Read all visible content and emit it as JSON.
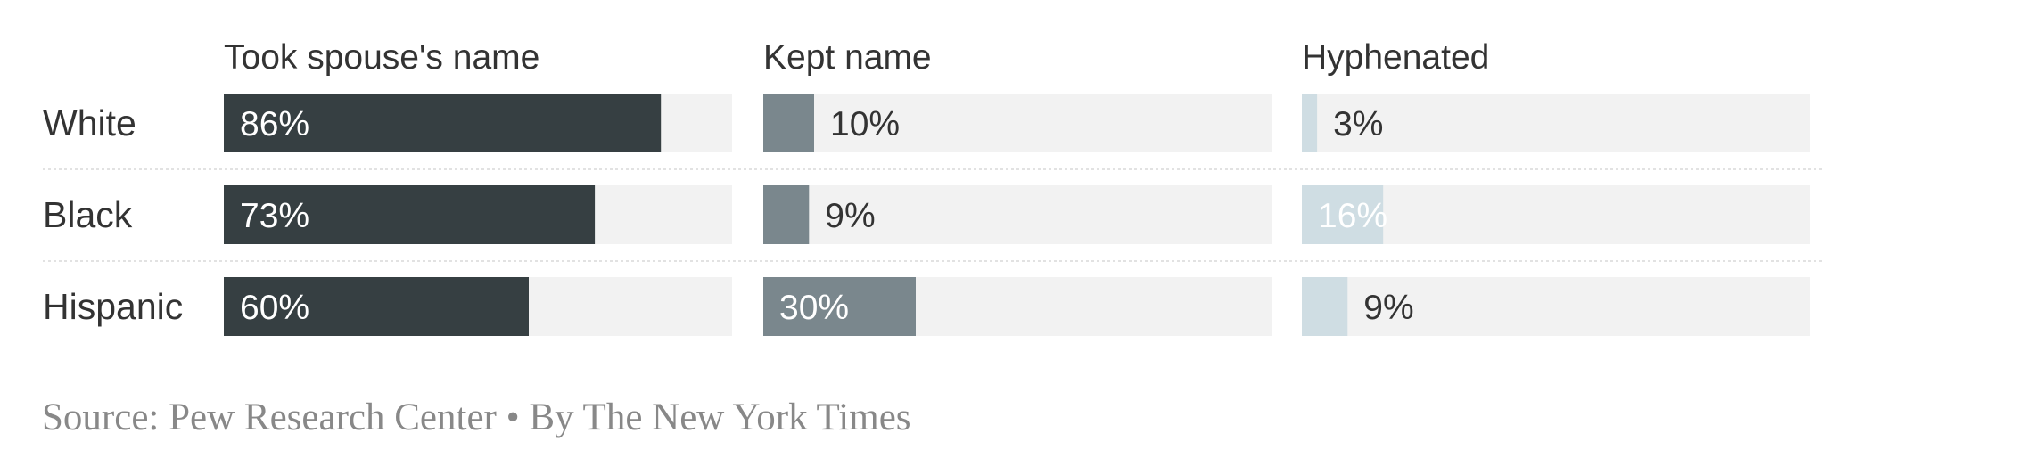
{
  "chart_data": {
    "type": "bar",
    "categories": [
      "White",
      "Black",
      "Hispanic"
    ],
    "series": [
      {
        "name": "Took spouse's name",
        "values": [
          86,
          73,
          60
        ],
        "labels": [
          "86%",
          "73%",
          "60%"
        ],
        "color": "#363f42",
        "label_color": "#ffffff"
      },
      {
        "name": "Kept name",
        "values": [
          10,
          9,
          30
        ],
        "labels": [
          "10%",
          "9%",
          "30%"
        ],
        "color": "#7a878d",
        "label_color": "#333333"
      },
      {
        "name": "Hyphenated",
        "values": [
          3,
          16,
          9
        ],
        "labels": [
          "3%",
          "16%",
          "9%"
        ],
        "color": "#cfdde3",
        "label_color": "#333333"
      }
    ],
    "ylim": [
      0,
      100
    ],
    "track_color": "#f2f2f2",
    "separator_color": "#e2e2e2",
    "grid": false,
    "legend": "none"
  },
  "footer": {
    "source": "Source: Pew Research Center • By The New York Times"
  }
}
